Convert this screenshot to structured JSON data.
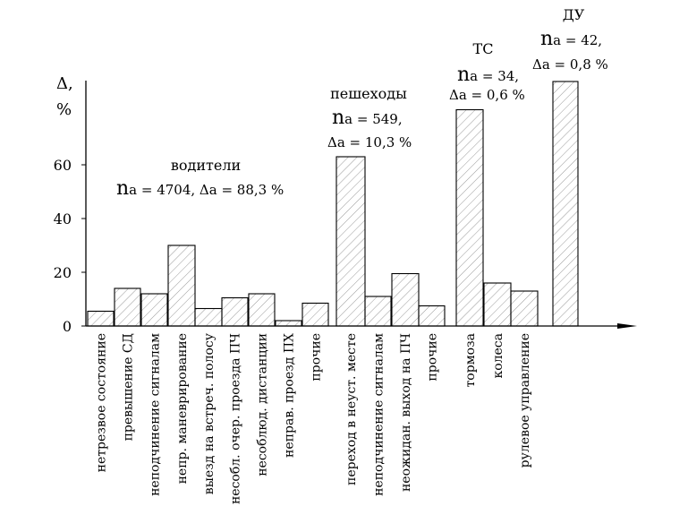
{
  "chart_data": {
    "type": "bar",
    "ylabel": "Δ, %",
    "ylim": [
      0,
      90
    ],
    "yticks": [
      "0",
      "20",
      "40",
      "60"
    ],
    "categories": [
      "нетрезвое состояние",
      "превышение СД",
      "неподчинение сигналам",
      "непр. маневрирование",
      "выезд на встреч. полосу",
      "несобл. очер. проезда ПЧ",
      "несоблюд. дистанции",
      "неправ. проезд ПХ",
      "прочие",
      "переход в неуст. месте",
      "неподчинение сигналам",
      "неожидан. выход на ПЧ",
      "прочие",
      "тормоза",
      "колеса",
      "рулевое управление",
      ""
    ],
    "values": [
      5.5,
      14,
      12,
      30,
      6.5,
      10.5,
      12,
      2,
      8.5,
      63,
      11,
      19.5,
      7.5,
      80.5,
      16,
      13,
      91
    ],
    "groups": [
      {
        "title": "водители",
        "line1": "na = 4704,  Δa = 88,3 %",
        "line2": ""
      },
      {
        "title": "пешеходы",
        "line1": "na = 549,",
        "line2": "Δa = 10,3 %"
      },
      {
        "title": "ТС",
        "line1": "na = 34,",
        "line2": "Δa = 0,6 %"
      },
      {
        "title": "ДУ",
        "line1": "na = 42,",
        "line2": "Δa = 0,8 %"
      }
    ],
    "grid": false,
    "fill": "hatched"
  }
}
